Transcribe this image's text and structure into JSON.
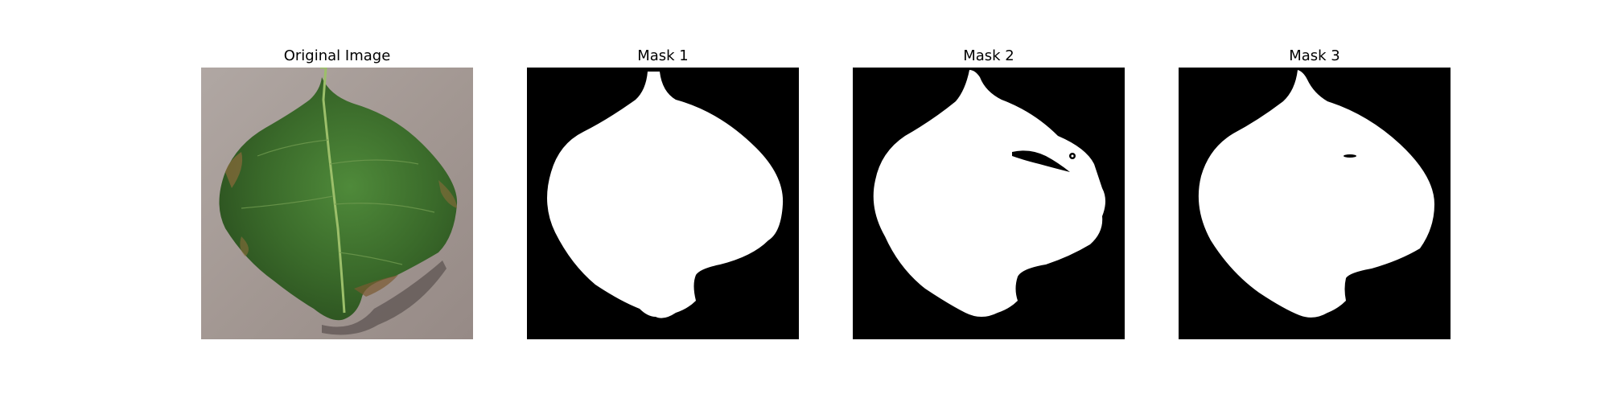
{
  "panels": [
    {
      "title": "Original Image",
      "kind": "photo"
    },
    {
      "title": "Mask 1",
      "kind": "mask"
    },
    {
      "title": "Mask 2",
      "kind": "mask"
    },
    {
      "title": "Mask 3",
      "kind": "mask"
    }
  ],
  "colors": {
    "background": "#ffffff",
    "mask_background": "#000000",
    "mask_foreground": "#ffffff",
    "leaf": "#3f6e2e",
    "ground": "#a69c97"
  }
}
